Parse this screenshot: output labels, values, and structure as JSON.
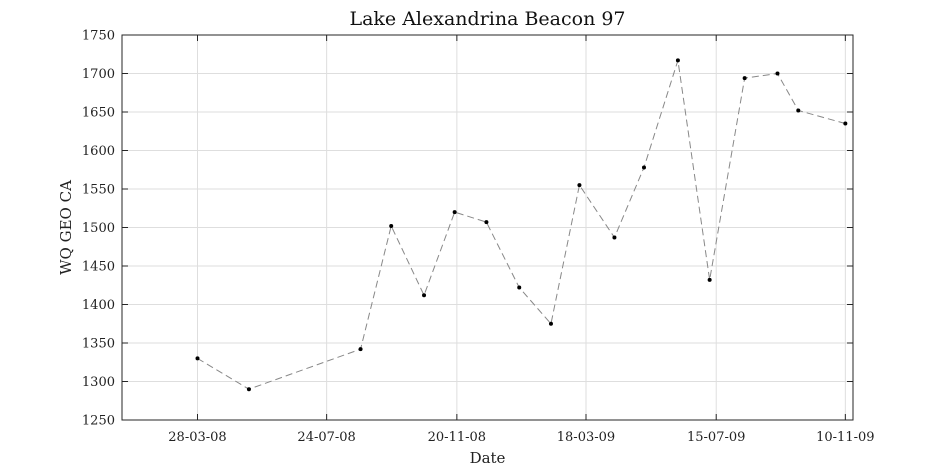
{
  "chart_data": {
    "type": "line",
    "title": "Lake Alexandrina Beacon 97",
    "xlabel": "Date",
    "ylabel": "WQ GEO CA",
    "ylim": [
      1250,
      1750
    ],
    "xlim": [
      "2008-01-19",
      "2009-11-17"
    ],
    "grid": true,
    "line_style": "dashed",
    "line_color": "#888888",
    "marker_color": "#000000",
    "x_ticks": [
      {
        "date": "2008-03-28",
        "label": "28-03-08"
      },
      {
        "date": "2008-07-24",
        "label": "24-07-08"
      },
      {
        "date": "2008-11-20",
        "label": "20-11-08"
      },
      {
        "date": "2009-03-18",
        "label": "18-03-09"
      },
      {
        "date": "2009-07-15",
        "label": "15-07-09"
      },
      {
        "date": "2009-11-10",
        "label": "10-11-09"
      }
    ],
    "y_ticks": [
      1250,
      1300,
      1350,
      1400,
      1450,
      1500,
      1550,
      1600,
      1650,
      1700,
      1750
    ],
    "series": [
      {
        "points": [
          {
            "x": "2008-03-28",
            "y": 1330
          },
          {
            "x": "2008-05-14",
            "y": 1290
          },
          {
            "x": "2008-08-24",
            "y": 1342
          },
          {
            "x": "2008-09-21",
            "y": 1502
          },
          {
            "x": "2008-10-21",
            "y": 1412
          },
          {
            "x": "2008-11-18",
            "y": 1520
          },
          {
            "x": "2008-12-17",
            "y": 1507
          },
          {
            "x": "2009-01-16",
            "y": 1422
          },
          {
            "x": "2009-02-14",
            "y": 1375
          },
          {
            "x": "2009-03-12",
            "y": 1555
          },
          {
            "x": "2009-04-13",
            "y": 1487
          },
          {
            "x": "2009-05-10",
            "y": 1578
          },
          {
            "x": "2009-06-10",
            "y": 1717
          },
          {
            "x": "2009-07-09",
            "y": 1432
          },
          {
            "x": "2009-08-10",
            "y": 1694
          },
          {
            "x": "2009-09-09",
            "y": 1700
          },
          {
            "x": "2009-09-28",
            "y": 1652
          },
          {
            "x": "2009-11-10",
            "y": 1635
          }
        ]
      }
    ]
  }
}
